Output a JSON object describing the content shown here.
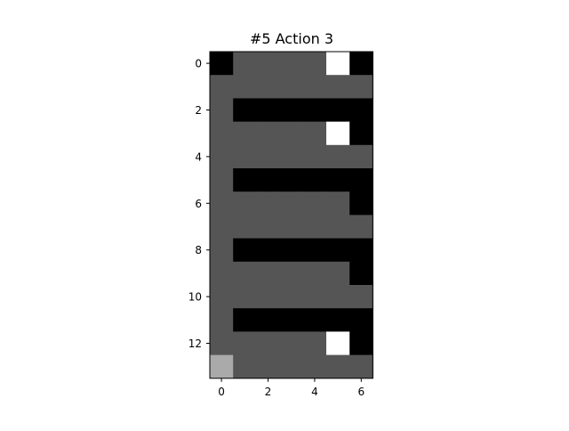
{
  "figure": {
    "title": "#5 Action 3"
  },
  "chart_data": {
    "type": "heatmap",
    "title": "#5 Action 3",
    "xlabel": "",
    "ylabel": "",
    "x_ticks": [
      0,
      2,
      4,
      6
    ],
    "y_ticks": [
      0,
      2,
      4,
      6,
      8,
      10,
      12
    ],
    "x_range": [
      -0.5,
      6.5
    ],
    "y_range": [
      13.5,
      -0.5
    ],
    "grid": false,
    "palette": {
      "0": "#000000",
      "1": "#555555",
      "2": "#aaaaaa",
      "3": "#ffffff"
    },
    "grid_values": [
      [
        0,
        1,
        1,
        1,
        1,
        3,
        0
      ],
      [
        1,
        1,
        1,
        1,
        1,
        1,
        1
      ],
      [
        1,
        0,
        0,
        0,
        0,
        0,
        0
      ],
      [
        1,
        1,
        1,
        1,
        1,
        3,
        0
      ],
      [
        1,
        1,
        1,
        1,
        1,
        1,
        1
      ],
      [
        1,
        0,
        0,
        0,
        0,
        0,
        0
      ],
      [
        1,
        1,
        1,
        1,
        1,
        1,
        0
      ],
      [
        1,
        1,
        1,
        1,
        1,
        1,
        1
      ],
      [
        1,
        0,
        0,
        0,
        0,
        0,
        0
      ],
      [
        1,
        1,
        1,
        1,
        1,
        1,
        0
      ],
      [
        1,
        1,
        1,
        1,
        1,
        1,
        1
      ],
      [
        1,
        0,
        0,
        0,
        0,
        0,
        0
      ],
      [
        1,
        1,
        1,
        1,
        1,
        3,
        0
      ],
      [
        2,
        1,
        1,
        1,
        1,
        1,
        1
      ]
    ]
  }
}
